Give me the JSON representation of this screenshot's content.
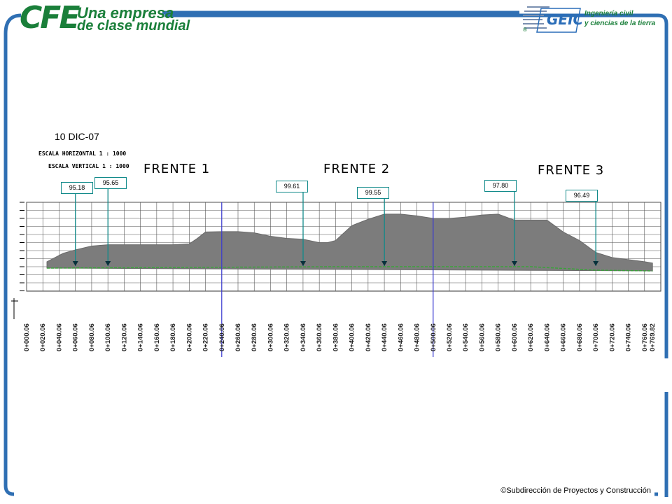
{
  "header": {
    "cfe_logo": {
      "mark": "CFE",
      "tagline_1": "Una empresa",
      "tagline_2": "de clase mundial"
    },
    "geic_logo": {
      "mark": "GEIC",
      "registered": "®",
      "tagline_1": "Ingeniería civil",
      "tagline_2": "y ciencias de la tierra"
    }
  },
  "drawing": {
    "date": "10 DIC-07",
    "scale_horizontal": "ESCALA HORIZONTAL 1 : 1000",
    "scale_vertical": "ESCALA VERTICAL 1 : 1000",
    "sections": [
      "FRENTE 1",
      "FRENTE 2",
      "FRENTE 3"
    ]
  },
  "colors": {
    "frame_blue": "#2f6fb3",
    "terrain_fill": "#7c7c7c",
    "ground_line": "#3aa33a",
    "callout_teal": "#108a8a",
    "section_divider": "#3a3ad0"
  },
  "chart_data": {
    "type": "area",
    "title": "",
    "xlabel": "",
    "ylabel": "",
    "x_ticks": [
      "0+000.06",
      "0+020.06",
      "0+040.06",
      "0+060.06",
      "0+080.06",
      "0+100.06",
      "0+120.06",
      "0+140.06",
      "0+160.06",
      "0+180.06",
      "0+200.06",
      "0+220.06",
      "0+240.06",
      "0+260.06",
      "0+280.06",
      "0+300.06",
      "0+320.06",
      "0+340.06",
      "0+360.06",
      "0+380.06",
      "0+400.06",
      "0+420.06",
      "0+440.06",
      "0+460.06",
      "0+480.06",
      "0+500.06",
      "0+520.06",
      "0+540.06",
      "0+560.06",
      "0+580.06",
      "0+600.06",
      "0+620.06",
      "0+640.06",
      "0+660.06",
      "0+680.06",
      "0+700.06",
      "0+720.06",
      "0+740.06",
      "0+760.06",
      "0+769.82"
    ],
    "section_dividers_chainage": [
      240,
      500
    ],
    "profile_surface_chainage": [
      25,
      45,
      60,
      80,
      100,
      120,
      140,
      160,
      180,
      200,
      210,
      220,
      240,
      260,
      280,
      300,
      320,
      340,
      360,
      370,
      380,
      400,
      420,
      440,
      460,
      480,
      500,
      520,
      540,
      560,
      580,
      600,
      620,
      640,
      660,
      680,
      700,
      720,
      740,
      760,
      769.82
    ],
    "profile_surface_value": [
      1.0,
      3.0,
      3.8,
      4.7,
      5.0,
      5.0,
      5.0,
      5.0,
      5.0,
      5.2,
      6.5,
      8.0,
      8.1,
      8.1,
      7.8,
      7.0,
      6.5,
      6.3,
      5.5,
      5.5,
      6.0,
      9.5,
      11.0,
      12.2,
      12.2,
      11.8,
      11.2,
      11.2,
      11.5,
      12.0,
      12.2,
      10.8,
      10.8,
      10.8,
      8.0,
      6.0,
      3.2,
      2.0,
      1.5,
      1.0,
      0.7
    ],
    "callouts": [
      {
        "label": "95.18",
        "chainage": 60.06
      },
      {
        "label": "95.65",
        "chainage": 100.06
      },
      {
        "label": "99.61",
        "chainage": 340.06
      },
      {
        "label": "99.55",
        "chainage": 440.06
      },
      {
        "label": "97.80",
        "chainage": 600.06
      },
      {
        "label": "96.49",
        "chainage": 700.06
      }
    ]
  },
  "footer": {
    "credit": "©Subdirección de Proyectos y Construcción"
  }
}
